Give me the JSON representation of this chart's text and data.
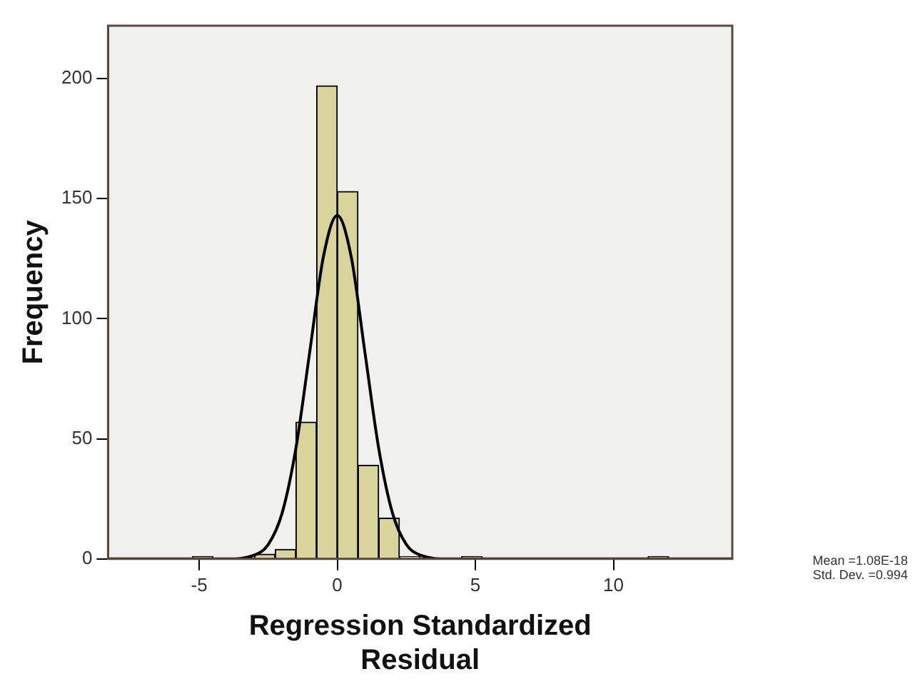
{
  "chart_data": {
    "type": "histogram",
    "xlabel": "Regression Standardized Residual",
    "ylabel": "Frequency",
    "annotations": [
      "Mean =1.08E-18",
      "Std. Dev. =0.994"
    ],
    "series": [
      {
        "color": "#d8d49a",
        "bins": [
          -5.25,
          -4.5,
          -3.75,
          -3,
          -2.25,
          -1.5,
          -0.75,
          0,
          0.75,
          1.5,
          2.25,
          3,
          3.75,
          4.5,
          5.25,
          6,
          6.75,
          7.5,
          8.25,
          9,
          9.75,
          10.5,
          11.25,
          12,
          12.75
        ],
        "values": [
          1,
          0,
          0,
          2,
          4,
          57,
          197,
          153,
          39,
          17,
          1,
          0,
          0,
          1,
          0,
          0,
          0,
          0,
          0,
          0,
          0,
          0,
          1,
          0
        ]
      },
      {
        "type": "line",
        "color": "#000000",
        "x": [
          -8.3,
          -4,
          -3,
          -2.5,
          -2,
          -1.5,
          -1,
          -0.5,
          0,
          0.5,
          1,
          1.5,
          2,
          2.5,
          3,
          4,
          14.3
        ],
        "values": [
          0,
          0,
          1.6,
          6,
          19,
          46,
          86,
          126,
          143,
          126,
          86,
          46,
          19,
          6,
          1.6,
          0,
          0
        ]
      }
    ],
    "xlim": [
      -8.3,
      14.3
    ],
    "ylim": [
      0,
      222
    ],
    "xticks": [
      -5,
      0,
      5,
      10
    ],
    "yticks": [
      0,
      50,
      100,
      150,
      200
    ],
    "grid": false,
    "legend": false,
    "marker": "none"
  }
}
